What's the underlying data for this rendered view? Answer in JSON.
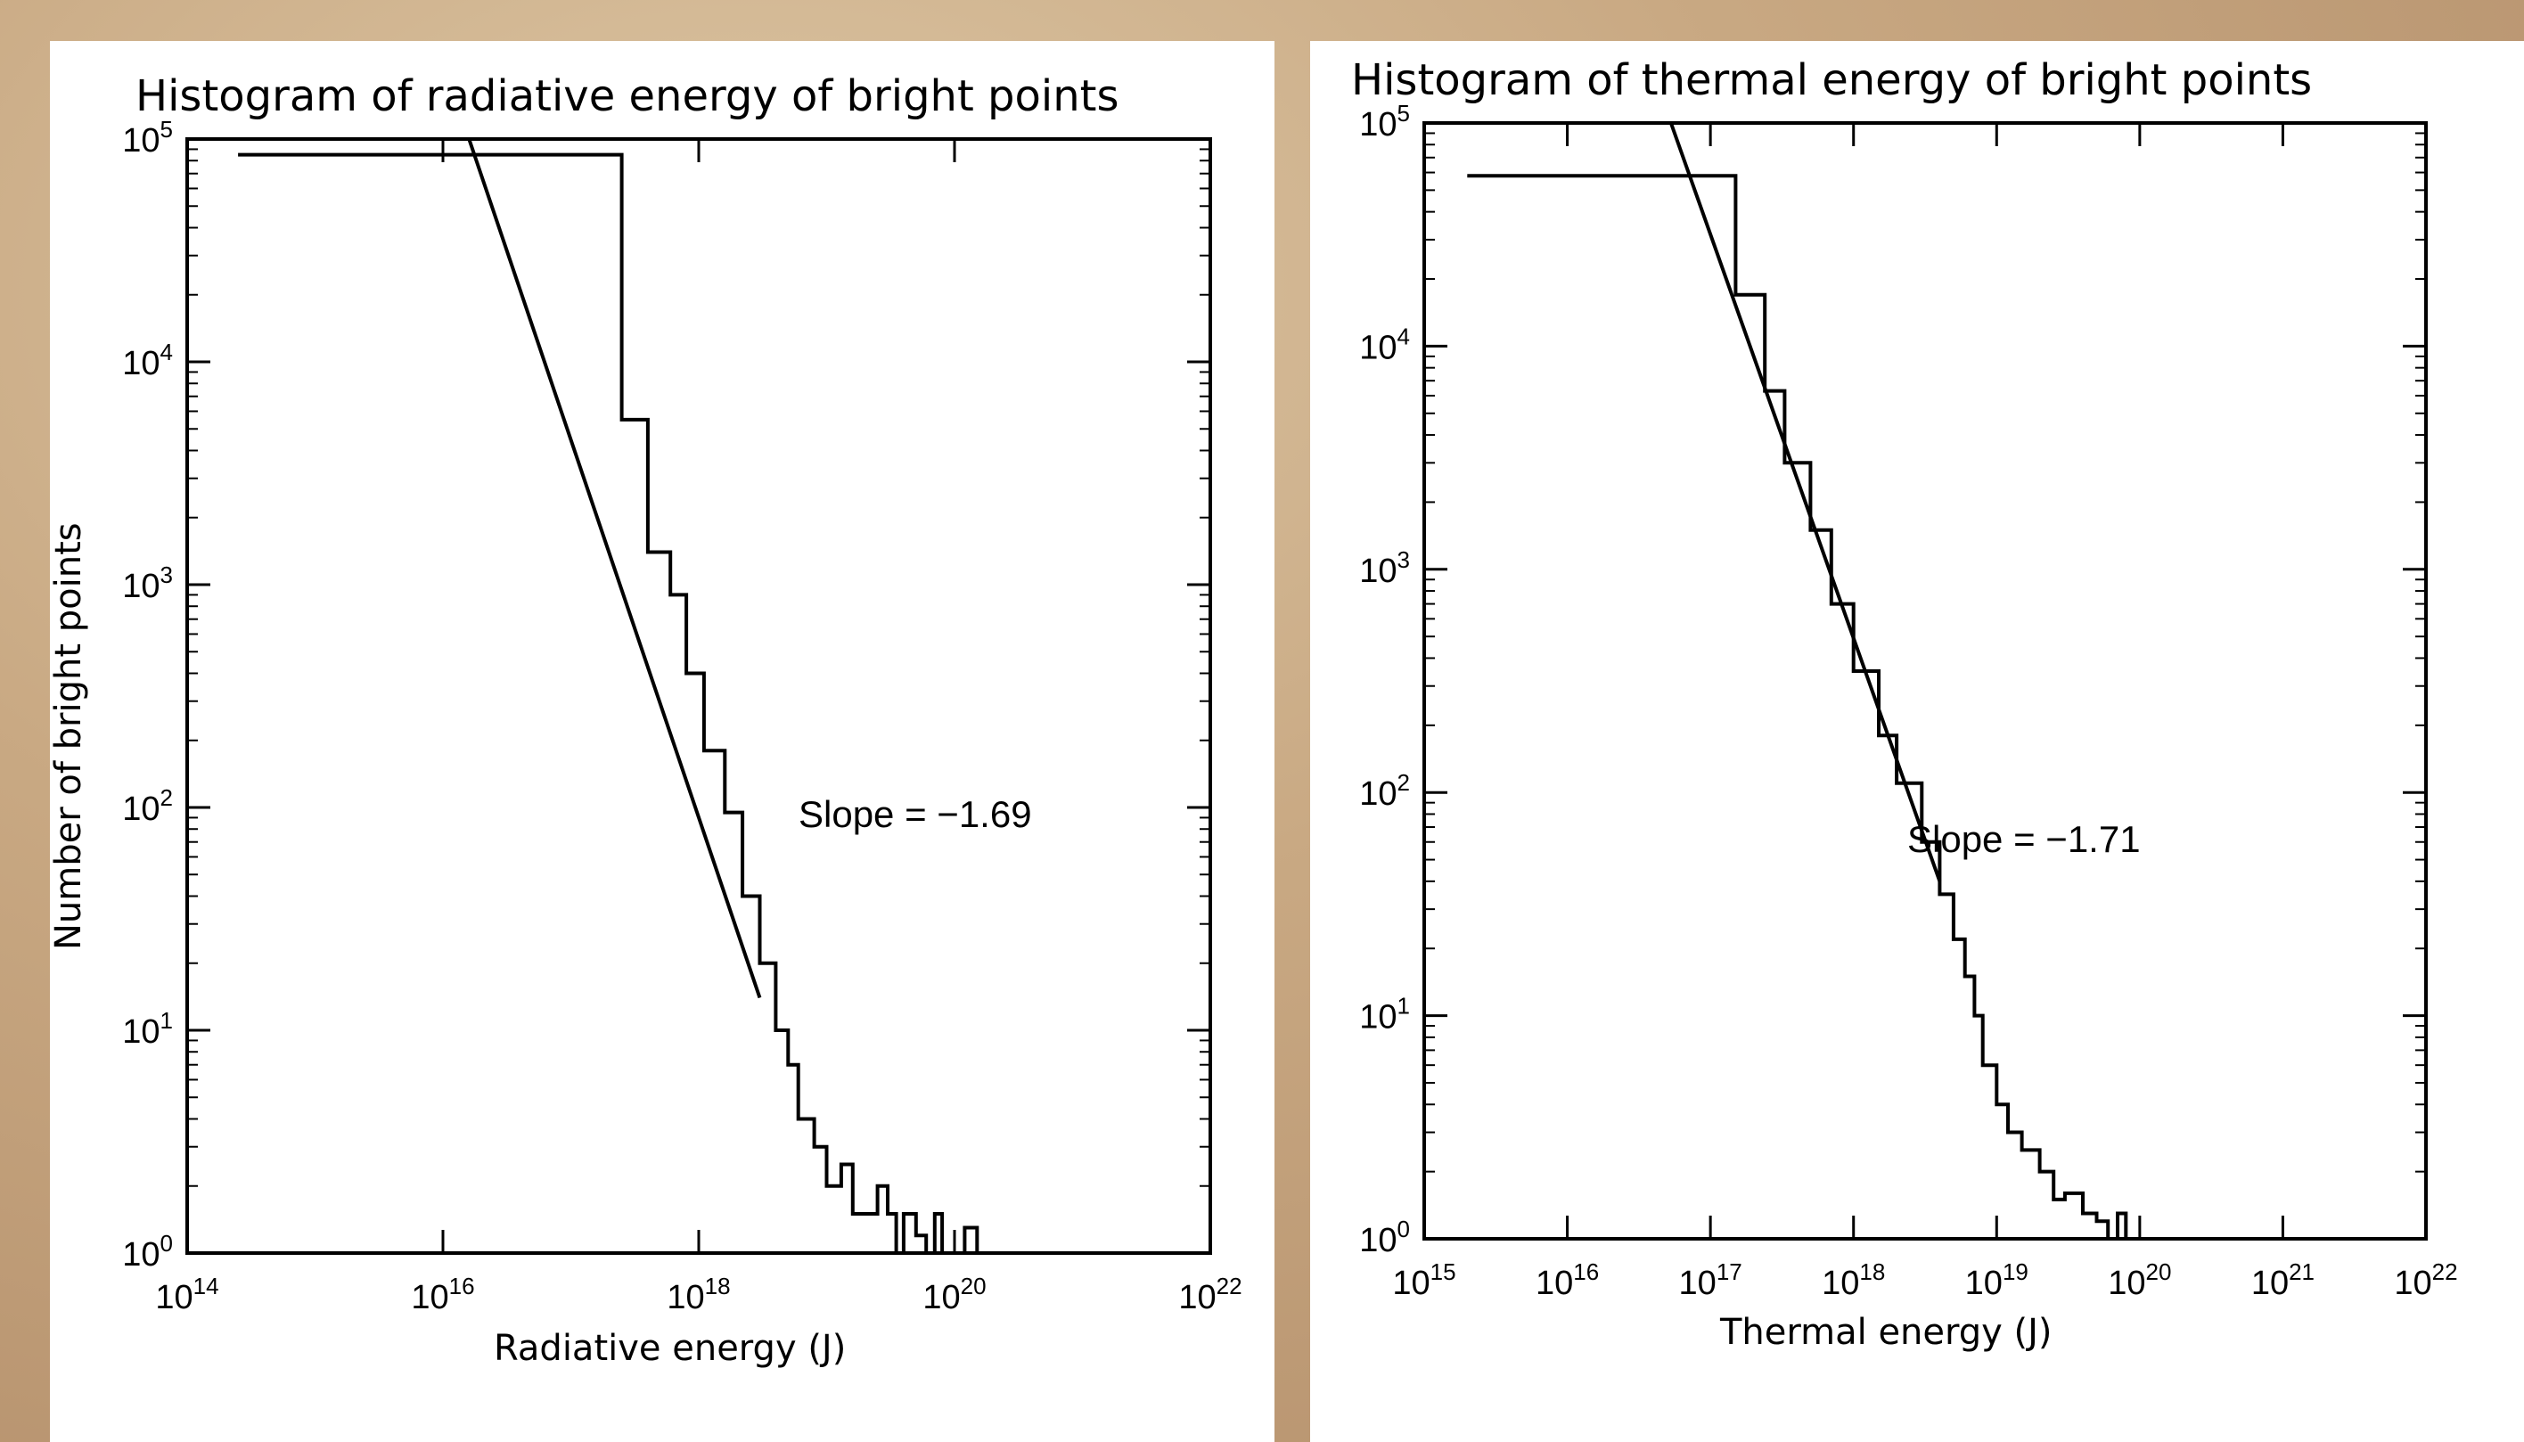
{
  "chart_data": [
    {
      "type": "line",
      "title": "Histogram of radiative energy of bright points",
      "xlabel": "Radiative energy (J)",
      "ylabel": "Number of bright points",
      "xscale": "log",
      "yscale": "log",
      "xlim": [
        100000000000000.0,
        1e+22
      ],
      "ylim": [
        1,
        100000
      ],
      "x_ticks": [
        {
          "value": 100000000000000.0,
          "base": "10",
          "exp": "14"
        },
        {
          "value": 1e+16,
          "base": "10",
          "exp": "16"
        },
        {
          "value": 1e+18,
          "base": "10",
          "exp": "18"
        },
        {
          "value": 1e+20,
          "base": "10",
          "exp": "20"
        },
        {
          "value": 1e+22,
          "base": "10",
          "exp": "22"
        }
      ],
      "y_ticks": [
        {
          "value": 1,
          "base": "10",
          "exp": "0"
        },
        {
          "value": 10,
          "base": "10",
          "exp": "1"
        },
        {
          "value": 100,
          "base": "10",
          "exp": "2"
        },
        {
          "value": 1000,
          "base": "10",
          "exp": "3"
        },
        {
          "value": 10000,
          "base": "10",
          "exp": "4"
        },
        {
          "value": 100000,
          "base": "10",
          "exp": "5"
        }
      ],
      "annotation": "Slope = −1.69",
      "slope": -1.69,
      "fit_line": {
        "x": [
          1.6e+16,
          3e+18
        ],
        "y": [
          100000,
          14
        ]
      },
      "series": [
        {
          "values_description": "histogram",
          "x": [
            250000000000000.0,
            1e+17,
            2.5e+17,
            4e+17,
            6e+17,
            8e+17,
            1.1e+18,
            1.6e+18,
            2.2e+18,
            3e+18,
            4e+18,
            5e+18,
            6e+18,
            8e+18,
            1e+19,
            1.3e+19,
            1.6e+19,
            2e+19,
            2.5e+19,
            3e+19,
            3.5e+19,
            4e+19,
            5e+19,
            6e+19,
            7e+19,
            8e+19,
            1e+20,
            1.2e+20,
            1.5e+20,
            2e+20,
            3e+20,
            5e+20,
            1e+21,
            2e+21,
            4.5e+21
          ],
          "y": [
            85000,
            85000,
            5500,
            1400,
            900,
            400,
            180,
            95,
            40,
            20,
            10,
            7,
            4,
            3,
            2,
            2.5,
            1.5,
            1.5,
            2,
            1.5,
            1,
            1.5,
            1.2,
            1,
            1.5,
            1,
            1,
            1.3,
            1,
            1,
            1,
            1,
            1,
            1,
            1
          ]
        }
      ]
    },
    {
      "type": "line",
      "title": "Histogram of thermal energy of bright points",
      "xlabel": "Thermal energy (J)",
      "ylabel": "",
      "xscale": "log",
      "yscale": "log",
      "xlim": [
        1000000000000000.0,
        1e+22
      ],
      "ylim": [
        1,
        100000
      ],
      "x_ticks": [
        {
          "value": 1000000000000000.0,
          "base": "10",
          "exp": "15"
        },
        {
          "value": 1e+16,
          "base": "10",
          "exp": "16"
        },
        {
          "value": 1e+17,
          "base": "10",
          "exp": "17"
        },
        {
          "value": 1e+18,
          "base": "10",
          "exp": "18"
        },
        {
          "value": 1e+19,
          "base": "10",
          "exp": "19"
        },
        {
          "value": 1e+20,
          "base": "10",
          "exp": "20"
        },
        {
          "value": 1e+21,
          "base": "10",
          "exp": "21"
        },
        {
          "value": 1e+22,
          "base": "10",
          "exp": "22"
        }
      ],
      "y_ticks": [
        {
          "value": 1,
          "base": "10",
          "exp": "0"
        },
        {
          "value": 10,
          "base": "10",
          "exp": "1"
        },
        {
          "value": 100,
          "base": "10",
          "exp": "2"
        },
        {
          "value": 1000,
          "base": "10",
          "exp": "3"
        },
        {
          "value": 10000,
          "base": "10",
          "exp": "4"
        },
        {
          "value": 100000,
          "base": "10",
          "exp": "5"
        }
      ],
      "annotation": "Slope = −1.71",
      "slope": -1.71,
      "fit_line": {
        "x": [
          5.3e+16,
          4e+18
        ],
        "y": [
          100000,
          40
        ]
      },
      "series": [
        {
          "values_description": "histogram",
          "x": [
            2000000000000000.0,
            5.5e+16,
            1.5e+17,
            2.4e+17,
            3.3e+17,
            5e+17,
            7e+17,
            1e+18,
            1.5e+18,
            2e+18,
            3e+18,
            4e+18,
            5e+18,
            6e+18,
            7e+18,
            8e+18,
            1e+19,
            1.2e+19,
            1.5e+19,
            2e+19,
            2.5e+19,
            3e+19,
            4e+19,
            5e+19,
            6e+19,
            7e+19,
            8e+19,
            9e+19
          ],
          "y": [
            58000,
            58000,
            17000,
            6300,
            3000,
            1500,
            700,
            350,
            180,
            110,
            60,
            35,
            22,
            15,
            10,
            6,
            4,
            3,
            2.5,
            2,
            1.5,
            1.6,
            1.3,
            1.2,
            1,
            1.3,
            1,
            1
          ]
        }
      ]
    }
  ]
}
